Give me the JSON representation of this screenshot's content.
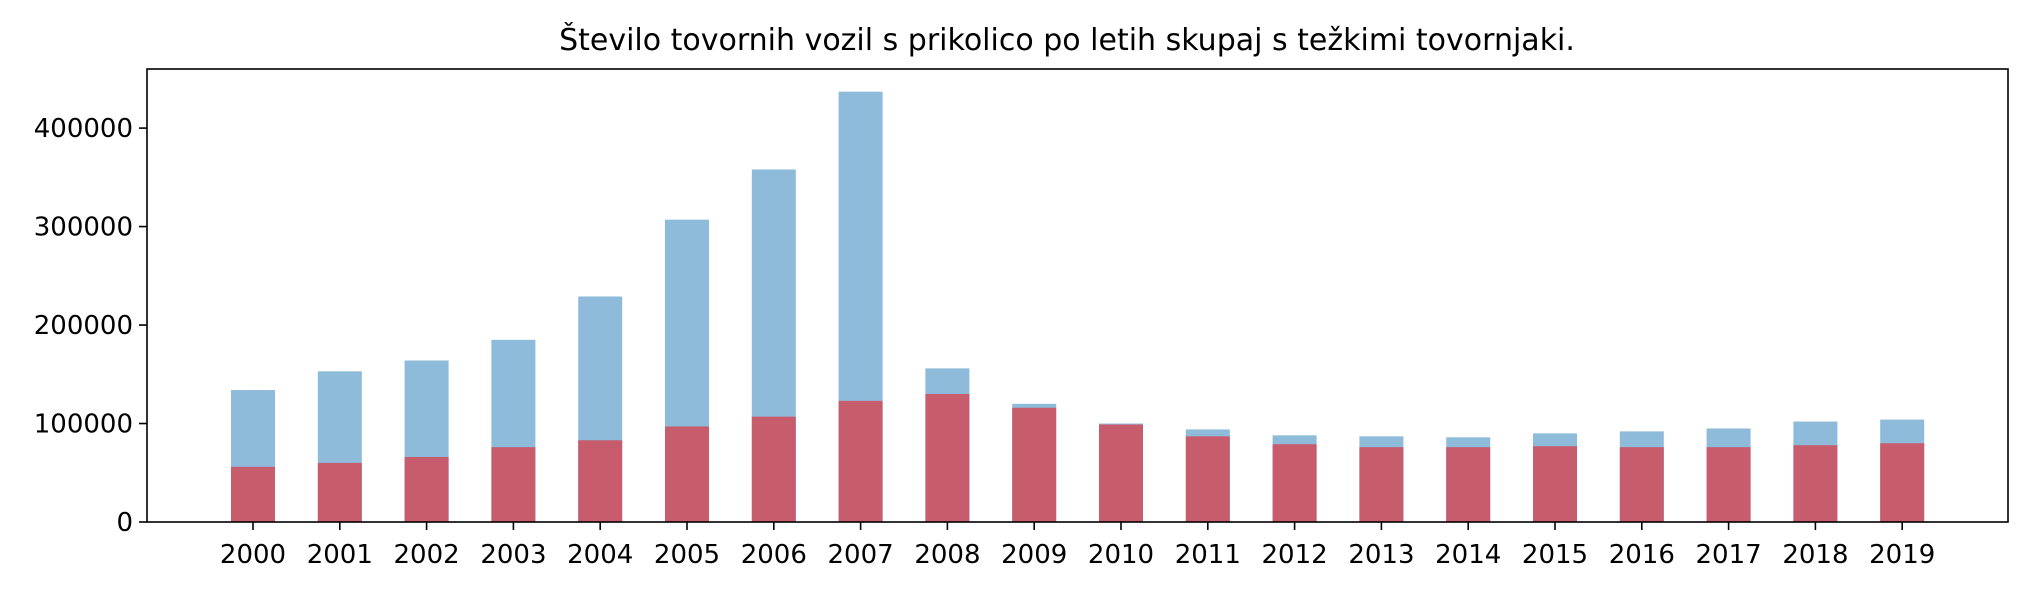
{
  "chart_data": {
    "type": "bar",
    "title": "Število tovornih vozil s prikolico po letih skupaj s težkimi tovornjaki.",
    "xlabel": "",
    "ylabel": "",
    "categories": [
      "2000",
      "2001",
      "2002",
      "2003",
      "2004",
      "2005",
      "2006",
      "2007",
      "2008",
      "2009",
      "2010",
      "2011",
      "2012",
      "2013",
      "2014",
      "2015",
      "2016",
      "2017",
      "2018",
      "2019"
    ],
    "ylim": [
      0,
      460000
    ],
    "yticks": [
      0,
      100000,
      200000,
      300000,
      400000
    ],
    "ytick_labels": [
      "0",
      "100000",
      "200000",
      "300000",
      "400000"
    ],
    "grid": false,
    "overlay": true,
    "series": [
      {
        "color": "#8fbbda",
        "values": [
          134000,
          153000,
          164000,
          185000,
          229000,
          307000,
          358000,
          437000,
          156000,
          120000,
          100000,
          94000,
          88000,
          87000,
          86000,
          90000,
          92000,
          95000,
          102000,
          104000
        ]
      },
      {
        "color": "#c75c6d",
        "values": [
          56000,
          60000,
          66000,
          76000,
          83000,
          97000,
          107000,
          123000,
          130000,
          116000,
          99000,
          87000,
          79000,
          76000,
          76000,
          77000,
          76000,
          76000,
          78000,
          80000
        ]
      }
    ]
  }
}
